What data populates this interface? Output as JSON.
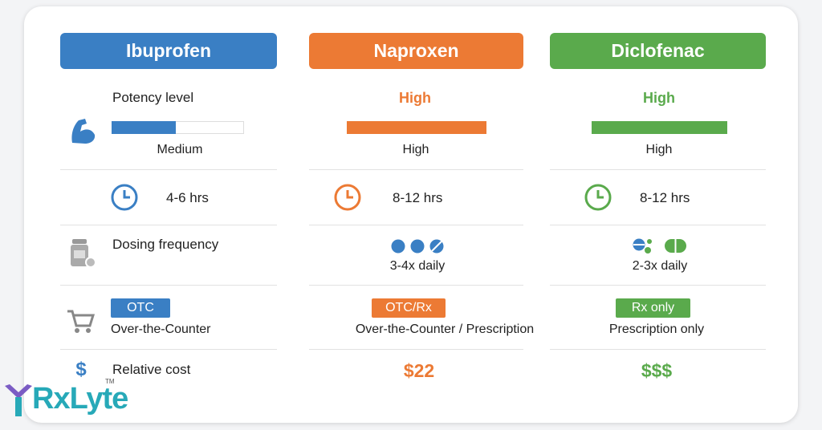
{
  "columns": [
    {
      "name": "Ibuprofen",
      "potency_label": "Potency level",
      "potency": "Medium",
      "duration": "4-6 hrs",
      "dosing_label": "Dosing frequency",
      "access_badge": "OTC",
      "access": "Over-the-Counter",
      "cost_icon": "$",
      "cost_label": "Relative cost"
    },
    {
      "name": "Naproxen",
      "potency_heading": "High",
      "potency": "High",
      "duration": "8-12 hrs",
      "dosing": "3-4x daily",
      "access_badge": "OTC/Rx",
      "access": "Over-the-Counter / Prescription",
      "cost": "$22"
    },
    {
      "name": "Diclofenac",
      "potency_heading": "High",
      "potency": "High",
      "duration": "8-12 hrs",
      "dosing": "2-3x daily",
      "access_badge": "Rx only",
      "access": "Prescription only",
      "cost": "$$$"
    }
  ],
  "logo": {
    "text": "RxLyte",
    "trademark": "TM"
  }
}
